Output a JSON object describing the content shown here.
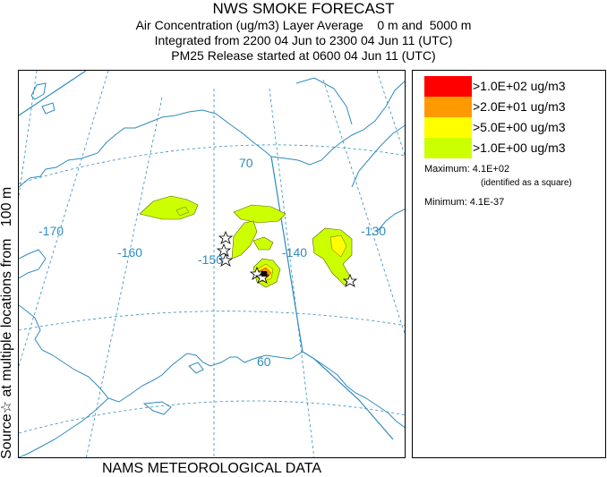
{
  "header": {
    "title": "NWS SMOKE FORECAST",
    "line1": "Air Concentration (ug/m3) Layer Average    0 m and  5000 m",
    "line2": "Integrated from 2200 04 Jun to 2300 04 Jun 11 (UTC)",
    "line3": "PM25 Release started at 0600 04 Jun 11 (UTC)"
  },
  "side_label": "Source☆ at multiple locations from   100 m",
  "bottom_label": "NAMS METEOROLOGICAL DATA",
  "map": {
    "lon_labels": [
      "-170",
      "-160",
      "-150",
      "-140",
      "-130"
    ],
    "lat_labels": [
      "70",
      "60"
    ]
  },
  "legend": {
    "items": [
      {
        "label": ">1.0E+02 ug/m3",
        "color": "#ff0000"
      },
      {
        "label": ">2.0E+01 ug/m3",
        "color": "#ff9900"
      },
      {
        "label": ">5.0E+00 ug/m3",
        "color": "#ffff00"
      },
      {
        "label": ">1.0E+00 ug/m3",
        "color": "#ccff00"
      }
    ],
    "maximum": "Maximum: 4.1E+02",
    "maximum_note": "(identified as a square)",
    "minimum": "Minimum: 4.1E-37"
  },
  "colors": {
    "coast": "#2e8bbf",
    "grid": "#2e8bbf"
  }
}
